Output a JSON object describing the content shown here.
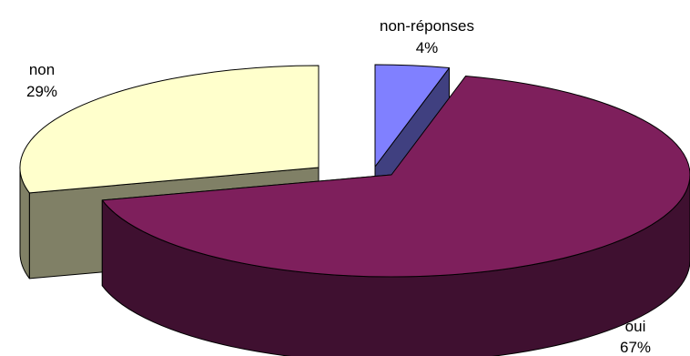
{
  "chart_data": {
    "type": "pie",
    "title": "",
    "labels": [
      "non-réponses",
      "oui",
      "non"
    ],
    "values": [
      4,
      67,
      29
    ],
    "value_labels": [
      "4%",
      "67%",
      "29%"
    ],
    "unit": "%",
    "three_d": true,
    "exploded": true,
    "legend": "none",
    "colors": {
      "non-réponses": {
        "top": "#8080ff",
        "side": "#404080"
      },
      "oui": {
        "top": "#7e1f5c",
        "side": "#3f1030"
      },
      "non": {
        "top": "#ffffcc",
        "side": "#808066"
      }
    }
  }
}
